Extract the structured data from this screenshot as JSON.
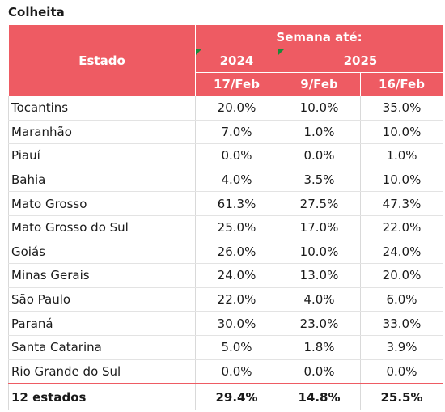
{
  "title": "Colheita",
  "header": {
    "estado": "Estado",
    "group": "Semana até:",
    "year_2024": "2024",
    "year_2025": "2025",
    "week_1": "17/Feb",
    "week_2": "9/Feb",
    "week_3": "16/Feb"
  },
  "rows": [
    {
      "state": "Tocantins",
      "v2024": "20.0%",
      "v2025a": "10.0%",
      "v2025b": "35.0%"
    },
    {
      "state": "Maranhão",
      "v2024": "7.0%",
      "v2025a": "1.0%",
      "v2025b": "10.0%"
    },
    {
      "state": "Piauí",
      "v2024": "0.0%",
      "v2025a": "0.0%",
      "v2025b": "1.0%"
    },
    {
      "state": "Bahia",
      "v2024": "4.0%",
      "v2025a": "3.5%",
      "v2025b": "10.0%"
    },
    {
      "state": "Mato Grosso",
      "v2024": "61.3%",
      "v2025a": "27.5%",
      "v2025b": "47.3%"
    },
    {
      "state": "Mato Grosso do Sul",
      "v2024": "25.0%",
      "v2025a": "17.0%",
      "v2025b": "22.0%"
    },
    {
      "state": "Goiás",
      "v2024": "26.0%",
      "v2025a": "10.0%",
      "v2025b": "24.0%"
    },
    {
      "state": "Minas Gerais",
      "v2024": "24.0%",
      "v2025a": "13.0%",
      "v2025b": "20.0%"
    },
    {
      "state": "São Paulo",
      "v2024": "22.0%",
      "v2025a": "4.0%",
      "v2025b": "6.0%"
    },
    {
      "state": "Paraná",
      "v2024": "30.0%",
      "v2025a": "23.0%",
      "v2025b": "33.0%"
    },
    {
      "state": "Santa Catarina",
      "v2024": "5.0%",
      "v2025a": "1.8%",
      "v2025b": "3.9%"
    },
    {
      "state": "Rio Grande do Sul",
      "v2024": "0.0%",
      "v2025a": "0.0%",
      "v2025b": "0.0%"
    }
  ],
  "total": {
    "state": "12 estados",
    "v2024": "29.4%",
    "v2025a": "14.8%",
    "v2025b": "25.5%"
  },
  "colors": {
    "header_bg": "#ee5b63",
    "marker": "#1a8a3a"
  }
}
